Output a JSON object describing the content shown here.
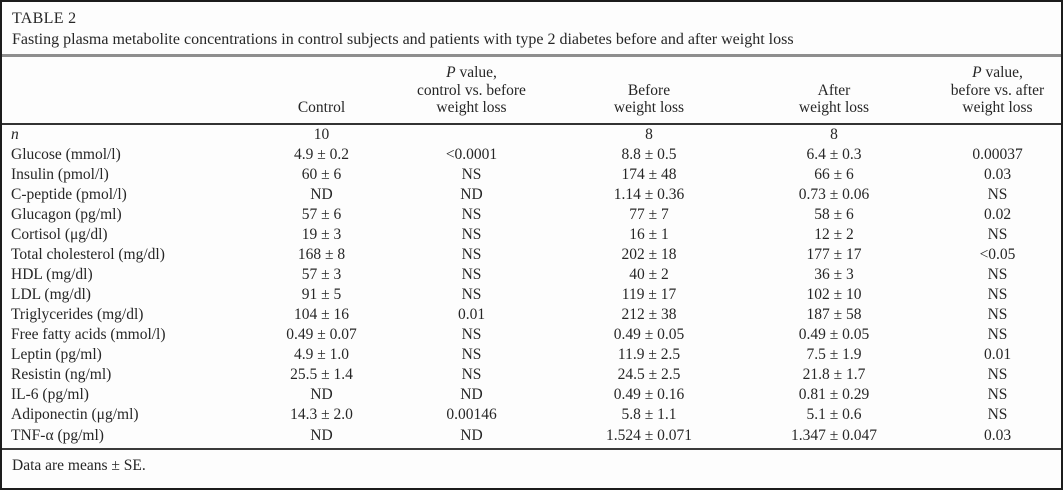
{
  "table": {
    "title": "TABLE 2",
    "caption": "Fasting plasma metabolite concentrations in control subjects and patients with type 2 diabetes before and after weight loss",
    "footnote": "Data are means ± SE.",
    "columns": {
      "control": "Control",
      "p1_line1_italic": "P",
      "p1_line1_rest": " value,",
      "p1_line2": "control vs. before",
      "p1_line3": "weight loss",
      "before_line1": "Before",
      "before_line2": "weight loss",
      "after_line1": "After",
      "after_line2": "weight loss",
      "p2_line1_italic": "P",
      "p2_line1_rest": " value,",
      "p2_line2": "before vs. after",
      "p2_line3": "weight loss"
    },
    "rows": [
      {
        "label": "n",
        "italic_label": true,
        "control": "10",
        "p1": "",
        "before": "8",
        "after": "8",
        "p2": ""
      },
      {
        "label": "Glucose (mmol/l)",
        "control": "4.9 ± 0.2",
        "p1": "<0.0001",
        "before": "8.8 ± 0.5",
        "after": "6.4 ± 0.3",
        "p2": "0.00037"
      },
      {
        "label": "Insulin (pmol/l)",
        "control": "60 ± 6",
        "p1": "NS",
        "before": "174 ± 48",
        "after": "66 ± 6",
        "p2": "0.03"
      },
      {
        "label": "C-peptide (pmol/l)",
        "control": "ND",
        "p1": "ND",
        "before": "1.14 ± 0.36",
        "after": "0.73 ± 0.06",
        "p2": "NS"
      },
      {
        "label": "Glucagon (pg/ml)",
        "control": "57 ± 6",
        "p1": "NS",
        "before": "77 ± 7",
        "after": "58 ± 6",
        "p2": "0.02"
      },
      {
        "label": "Cortisol (μg/dl)",
        "control": "19 ± 3",
        "p1": "NS",
        "before": "16 ± 1",
        "after": "12 ± 2",
        "p2": "NS"
      },
      {
        "label": "Total cholesterol (mg/dl)",
        "control": "168 ± 8",
        "p1": "NS",
        "before": "202 ± 18",
        "after": "177 ± 17",
        "p2": "<0.05"
      },
      {
        "label": "HDL (mg/dl)",
        "control": "57 ± 3",
        "p1": "NS",
        "before": "40 ± 2",
        "after": "36 ± 3",
        "p2": "NS"
      },
      {
        "label": "LDL (mg/dl)",
        "control": "91 ± 5",
        "p1": "NS",
        "before": "119 ± 17",
        "after": "102 ± 10",
        "p2": "NS"
      },
      {
        "label": "Triglycerides (mg/dl)",
        "control": "104 ± 16",
        "p1": "0.01",
        "before": "212 ± 38",
        "after": "187 ± 58",
        "p2": "NS"
      },
      {
        "label": "Free fatty acids (mmol/l)",
        "control": "0.49 ± 0.07",
        "p1": "NS",
        "before": "0.49 ± 0.05",
        "after": "0.49 ± 0.05",
        "p2": "NS"
      },
      {
        "label": "Leptin (pg/ml)",
        "control": "4.9 ± 1.0",
        "p1": "NS",
        "before": "11.9 ± 2.5",
        "after": "7.5 ± 1.9",
        "p2": "0.01"
      },
      {
        "label": "Resistin (ng/ml)",
        "control": "25.5 ± 1.4",
        "p1": "NS",
        "before": "24.5 ± 2.5",
        "after": "21.8 ± 1.7",
        "p2": "NS"
      },
      {
        "label": "IL-6 (pg/ml)",
        "control": "ND",
        "p1": "ND",
        "before": "0.49 ± 0.16",
        "after": "0.81 ± 0.29",
        "p2": "NS"
      },
      {
        "label": "Adiponectin (μg/ml)",
        "control": "14.3 ± 2.0",
        "p1": "0.00146",
        "before": "5.8 ± 1.1",
        "after": "5.1 ± 0.6",
        "p2": "NS"
      },
      {
        "label": "TNF-α (pg/ml)",
        "control": "ND",
        "p1": "ND",
        "before": "1.524 ± 0.071",
        "after": "1.347 ± 0.047",
        "p2": "0.03"
      }
    ]
  }
}
